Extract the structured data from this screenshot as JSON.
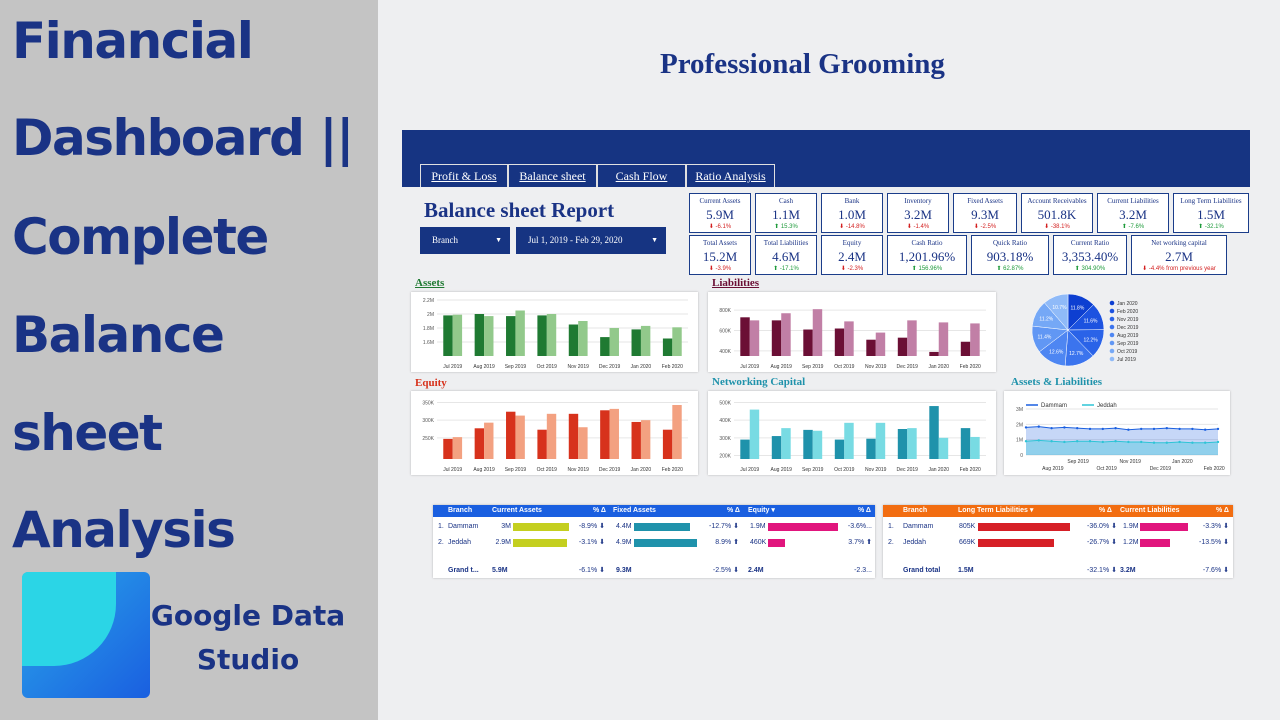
{
  "headline": {
    "line1": "Financial",
    "line2": "Dashboard ||",
    "line3": "Complete",
    "line4": "Balance",
    "line5": "sheet",
    "line6": "Analysis"
  },
  "brand": {
    "line1": "Google Data",
    "line2": "Studio"
  },
  "report_title": "Professional Grooming",
  "tabs": [
    "Profit & Loss",
    "Balance sheet",
    "Cash Flow",
    "Ratio Analysis"
  ],
  "section_title": "Balance sheet Report",
  "filters": {
    "branch": "Branch",
    "date_range": "Jul 1, 2019 - Feb 29, 2020"
  },
  "colors": {
    "navy": "#163482",
    "assets": "#1f7a32",
    "assets_light": "#92c98b",
    "liab": "#6b0f35",
    "liab_light": "#c17fa6",
    "equity": "#d7321c",
    "equity_light": "#f3a181",
    "net": "#1f92ab",
    "net_light": "#78dbe3"
  },
  "kpis_row1": [
    {
      "label": "Current Assets",
      "value": "5.9M",
      "change": "-6.1%",
      "dir": "down"
    },
    {
      "label": "Cash",
      "value": "1.1M",
      "change": "15.3%",
      "dir": "up"
    },
    {
      "label": "Bank",
      "value": "1.0M",
      "change": "-14.8%",
      "dir": "down"
    },
    {
      "label": "Inventory",
      "value": "3.2M",
      "change": "-1.4%",
      "dir": "down"
    },
    {
      "label": "Fixed Assets",
      "value": "9.3M",
      "change": "-2.5%",
      "dir": "down"
    },
    {
      "label": "Account Receivables",
      "value": "501.8K",
      "change": "-38.1%",
      "dir": "down"
    },
    {
      "label": "Current Liabilities",
      "value": "3.2M",
      "change": "-7.6%",
      "dir": "up"
    },
    {
      "label": "Long Term Liabilities",
      "value": "1.5M",
      "change": "-32.1%",
      "dir": "up"
    }
  ],
  "kpis_row2": [
    {
      "label": "Total Assets",
      "value": "15.2M",
      "change": "-3.9%",
      "dir": "down"
    },
    {
      "label": "Total Liabilities",
      "value": "4.6M",
      "change": "-17.1%",
      "dir": "up"
    },
    {
      "label": "Equity",
      "value": "2.4M",
      "change": "-2.3%",
      "dir": "down"
    },
    {
      "label": "Cash Ratio",
      "value": "1,201.96%",
      "change": "156.96%",
      "dir": "up"
    },
    {
      "label": "Quick Ratio",
      "value": "903.18%",
      "change": "62.87%",
      "dir": "up"
    },
    {
      "label": "Current Ratio",
      "value": "3,353.40%",
      "change": "304.90%",
      "dir": "up"
    },
    {
      "label": "Net working capital",
      "value": "2.7M",
      "change": "-4.4% from previous year",
      "dir": "down"
    }
  ],
  "months": [
    "Jul 2019",
    "Aug 2019",
    "Sep 2019",
    "Oct 2019",
    "Nov 2019",
    "Dec 2019",
    "Jan 2020",
    "Feb 2020"
  ],
  "chart_data": [
    {
      "type": "bar",
      "title": "Assets",
      "ylim": [
        1.4,
        2.2
      ],
      "yticks": [
        "2.2M",
        "2M",
        "1.8M",
        "1.6M"
      ],
      "ytick_values": [
        2.2,
        2.0,
        1.8,
        1.6
      ],
      "series": [
        {
          "values": [
            1.98,
            2.0,
            1.97,
            1.98,
            1.85,
            1.67,
            1.78,
            1.65
          ]
        },
        {
          "values": [
            1.99,
            1.97,
            2.05,
            2.0,
            1.9,
            1.8,
            1.83,
            1.81
          ]
        }
      ]
    },
    {
      "type": "bar",
      "title": "Liabilities",
      "ylim": [
        350,
        900
      ],
      "yticks": [
        "800K",
        "600K",
        "400K"
      ],
      "ytick_values": [
        800,
        600,
        400
      ],
      "series": [
        {
          "values": [
            730,
            700,
            610,
            620,
            510,
            530,
            390,
            490
          ]
        },
        {
          "values": [
            700,
            770,
            810,
            690,
            580,
            700,
            680,
            670
          ]
        }
      ]
    },
    {
      "type": "pie",
      "title": "",
      "labels": [
        "Jan 2020",
        "Feb 2020",
        "Nov 2019",
        "Dec 2019",
        "Aug 2019",
        "Sep 2019",
        "Oct 2019",
        "Jul 2019"
      ],
      "values": [
        11.8,
        11.6,
        12.2,
        12.7,
        12.6,
        11.4,
        11.2,
        10.7
      ],
      "slice_labels": [
        "11.8%",
        "11.6%",
        "12.2%",
        "12.7%",
        "12.6%",
        "11.4%",
        "11.2%",
        "10.7%"
      ]
    },
    {
      "type": "bar",
      "title": "Equity",
      "ylim": [
        190,
        360
      ],
      "yticks": [
        "350K",
        "300K",
        "250K"
      ],
      "ytick_values": [
        350,
        300,
        250
      ],
      "series": [
        {
          "values": [
            247,
            277,
            324,
            273,
            318,
            328,
            295,
            273
          ]
        },
        {
          "values": [
            252,
            293,
            313,
            318,
            280,
            332,
            300,
            343
          ]
        }
      ]
    },
    {
      "type": "bar",
      "title": "Networking Capital",
      "ylim": [
        180,
        520
      ],
      "yticks": [
        "500K",
        "400K",
        "300K",
        "200K"
      ],
      "ytick_values": [
        500,
        400,
        300,
        200
      ],
      "series": [
        {
          "values": [
            290,
            310,
            345,
            290,
            295,
            350,
            480,
            355
          ]
        },
        {
          "values": [
            460,
            355,
            340,
            385,
            385,
            355,
            300,
            305
          ]
        }
      ]
    },
    {
      "type": "line",
      "title": "Assets & Liabilities",
      "ylim": [
        0,
        3
      ],
      "yticks": [
        "3M",
        "2M",
        "1M",
        "0"
      ],
      "ytick_values": [
        3,
        2,
        1,
        0
      ],
      "legend": [
        "Dammam",
        "Jeddah"
      ],
      "xticks_top": [
        "Sep 2019",
        "Nov 2019",
        "Jan 2020"
      ],
      "xticks_bottom": [
        "Aug 2019",
        "Oct 2019",
        "Dec 2019",
        "Feb 2020"
      ],
      "series": [
        {
          "name": "Dammam",
          "values": [
            1.8,
            1.85,
            1.75,
            1.8,
            1.75,
            1.7,
            1.7,
            1.75,
            1.65,
            1.7,
            1.7,
            1.75,
            1.7,
            1.7,
            1.65,
            1.7
          ]
        },
        {
          "name": "Jeddah",
          "values": [
            0.9,
            0.95,
            0.9,
            0.85,
            0.9,
            0.9,
            0.85,
            0.9,
            0.85,
            0.85,
            0.8,
            0.8,
            0.85,
            0.8,
            0.8,
            0.85
          ]
        }
      ]
    }
  ],
  "table_left": {
    "headers": [
      "Branch",
      "Current Assets",
      "% Δ",
      "Fixed Assets",
      "% Δ",
      "Equity ▾",
      "% Δ"
    ],
    "rows": [
      {
        "idx": "1.",
        "branch": "Dammam",
        "ca": "3M",
        "ca_pct": "-8.9% ⬇",
        "fa": "4.4M",
        "fa_pct": "-12.7% ⬇",
        "eq": "1.9M",
        "eq_pct": "-3.6%..."
      },
      {
        "idx": "2.",
        "branch": "Jeddah",
        "ca": "2.9M",
        "ca_pct": "-3.1% ⬇",
        "fa": "4.9M",
        "fa_pct": "8.9% ⬆",
        "eq": "460K",
        "eq_pct": "3.7% ⬆"
      }
    ],
    "total": {
      "label": "Grand t...",
      "ca": "5.9M",
      "ca_pct": "-6.1% ⬇",
      "fa": "9.3M",
      "fa_pct": "-2.5% ⬇",
      "eq": "2.4M",
      "eq_pct": "-2.3..."
    },
    "bars": {
      "ca": [
        1,
        0.97
      ],
      "fa": [
        0.89,
        1
      ],
      "eq": [
        1,
        0.24
      ]
    }
  },
  "table_right": {
    "headers": [
      "Branch",
      "Long Term Liabilities ▾",
      "% Δ",
      "Current Liabilities",
      "% Δ"
    ],
    "rows": [
      {
        "idx": "1.",
        "branch": "Dammam",
        "ltl": "805K",
        "ltl_pct": "-36.0% ⬇",
        "cl": "1.9M",
        "cl_pct": "-3.3% ⬇"
      },
      {
        "idx": "2.",
        "branch": "Jeddah",
        "ltl": "669K",
        "ltl_pct": "-26.7% ⬇",
        "cl": "1.2M",
        "cl_pct": "-13.5% ⬇"
      }
    ],
    "total": {
      "label": "Grand total",
      "ltl": "1.5M",
      "ltl_pct": "-32.1% ⬇",
      "cl": "3.2M",
      "cl_pct": "-7.6% ⬇"
    },
    "bars": {
      "ltl": [
        1,
        0.83
      ],
      "cl": [
        1,
        0.63
      ]
    }
  }
}
